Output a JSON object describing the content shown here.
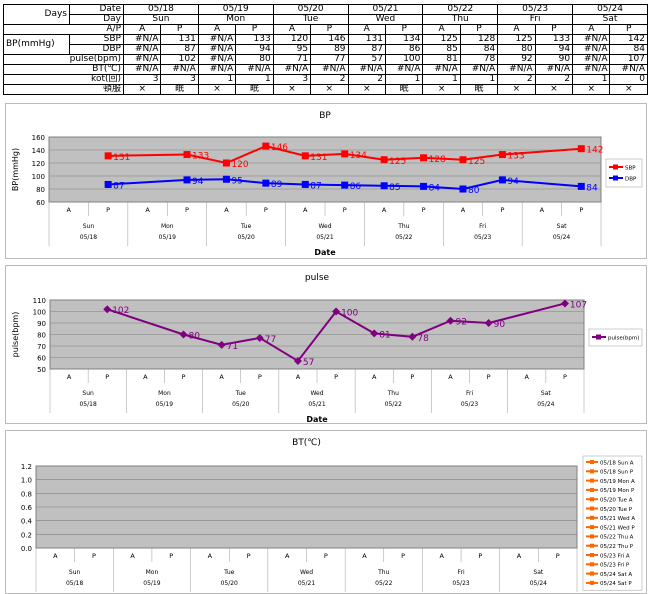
{
  "table": {
    "days_label": "Days",
    "date_label": "Date",
    "day_label": "Day",
    "ap_label": "A/P",
    "bp_label": "BP(mmHg)",
    "sbp_label": "SBP",
    "dbp_label": "DBP",
    "pulse_label": "pulse(bpm)",
    "bt_label": "BT(℃)",
    "kot_label": "kot(回)",
    "med_label": "頓服",
    "dates": [
      "05/18",
      "05/19",
      "05/20",
      "05/21",
      "05/22",
      "05/23",
      "05/24"
    ],
    "days": [
      "Sun",
      "Mon",
      "Tue",
      "Wed",
      "Thu",
      "Fri",
      "Sat"
    ],
    "ap": [
      "A",
      "P",
      "A",
      "P",
      "A",
      "P",
      "A",
      "P",
      "A",
      "P",
      "A",
      "P",
      "A",
      "P"
    ],
    "sbp": [
      "#N/A",
      "131",
      "#N/A",
      "133",
      "120",
      "146",
      "131",
      "134",
      "125",
      "128",
      "125",
      "133",
      "#N/A",
      "142"
    ],
    "dbp": [
      "#N/A",
      "87",
      "#N/A",
      "94",
      "95",
      "89",
      "87",
      "86",
      "85",
      "84",
      "80",
      "94",
      "#N/A",
      "84"
    ],
    "pulse": [
      "#N/A",
      "102",
      "#N/A",
      "80",
      "71",
      "77",
      "57",
      "100",
      "81",
      "78",
      "92",
      "90",
      "#N/A",
      "107"
    ],
    "bt": [
      "#N/A",
      "#N/A",
      "#N/A",
      "#N/A",
      "#N/A",
      "#N/A",
      "#N/A",
      "#N/A",
      "#N/A",
      "#N/A",
      "#N/A",
      "#N/A",
      "#N/A",
      "#N/A"
    ],
    "kot": [
      "3",
      "3",
      "1",
      "1",
      "3",
      "2",
      "2",
      "1",
      "1",
      "1",
      "2",
      "2",
      "1",
      "0"
    ],
    "med": [
      "×",
      "眠",
      "×",
      "眠",
      "×",
      "×",
      "×",
      "眠",
      "×",
      "眠",
      "×",
      "×",
      "×",
      "×"
    ]
  },
  "chart_data": [
    {
      "type": "line",
      "title": "BP",
      "xlabel": "Date",
      "ylabel": "BP(mmHg)",
      "ylim": [
        60,
        160
      ],
      "yticks": [
        "60",
        "80",
        "100",
        "120",
        "140",
        "160"
      ],
      "grid": true,
      "legend": "right",
      "categories": {
        "ap": [
          "A",
          "P",
          "A",
          "P",
          "A",
          "P",
          "A",
          "P",
          "A",
          "P",
          "A",
          "P",
          "A",
          "P"
        ],
        "days": [
          "Sun",
          "Mon",
          "Tue",
          "Wed",
          "Thu",
          "Fri",
          "Sat"
        ],
        "dates": [
          "05/18",
          "05/19",
          "05/20",
          "05/21",
          "05/22",
          "05/23",
          "05/24"
        ]
      },
      "series": [
        {
          "name": "SBP",
          "color": "#ff0000",
          "marker": "square",
          "values": [
            null,
            131,
            null,
            133,
            120,
            146,
            131,
            134,
            125,
            128,
            125,
            133,
            null,
            142
          ]
        },
        {
          "name": "DBP",
          "color": "#0000ff",
          "marker": "square",
          "values": [
            null,
            87,
            null,
            94,
            95,
            89,
            87,
            86,
            85,
            84,
            80,
            94,
            null,
            84
          ]
        }
      ]
    },
    {
      "type": "line",
      "title": "pulse",
      "xlabel": "Date",
      "ylabel": "pulse(bpm)",
      "ylim": [
        50,
        110
      ],
      "yticks": [
        "50",
        "60",
        "70",
        "80",
        "90",
        "100",
        "110"
      ],
      "grid": true,
      "legend": "right",
      "categories": {
        "ap": [
          "A",
          "P",
          "A",
          "P",
          "A",
          "P",
          "A",
          "P",
          "A",
          "P",
          "A",
          "P",
          "A",
          "P"
        ],
        "days": [
          "Sun",
          "Mon",
          "Tue",
          "Wed",
          "Thu",
          "Fri",
          "Sat"
        ],
        "dates": [
          "05/18",
          "05/19",
          "05/20",
          "05/21",
          "05/22",
          "05/23",
          "05/24"
        ]
      },
      "series": [
        {
          "name": "pulse(bpm)",
          "color": "#800080",
          "marker": "diamond",
          "values": [
            null,
            102,
            null,
            80,
            71,
            77,
            57,
            100,
            81,
            78,
            92,
            90,
            null,
            107
          ]
        }
      ]
    },
    {
      "type": "line",
      "title": "BT(℃)",
      "xlabel": "",
      "ylabel": "",
      "ylim": [
        0,
        1.2
      ],
      "yticks": [
        "0.0",
        "0.2",
        "0.4",
        "0.6",
        "0.8",
        "1.0",
        "1.2"
      ],
      "grid": true,
      "legend": "right",
      "categories": {
        "ap": [
          "A",
          "P",
          "A",
          "P",
          "A",
          "P",
          "A",
          "P",
          "A",
          "P",
          "A",
          "P",
          "A",
          "P"
        ],
        "days": [
          "Sun",
          "Mon",
          "Tue",
          "Wed",
          "Thu",
          "Fri",
          "Sat"
        ],
        "dates": [
          "05/18",
          "05/19",
          "05/20",
          "05/21",
          "05/22",
          "05/23",
          "05/24"
        ]
      },
      "legend_entries": [
        "05/18 Sun A",
        "05/18 Sun P",
        "05/19 Mon A",
        "05/19 Mon P",
        "05/20 Tue A",
        "05/20 Tue P",
        "05/21 Wed A",
        "05/21 Wed P",
        "05/22 Thu A",
        "05/22 Thu P",
        "05/23 Fri A",
        "05/23 Fri P",
        "05/24 Sat A",
        "05/24 Sat P"
      ],
      "legend_color": "#ff6600",
      "series": []
    }
  ]
}
